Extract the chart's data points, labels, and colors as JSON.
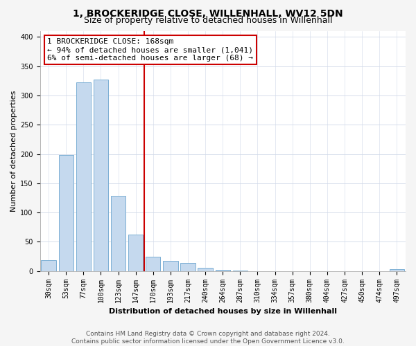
{
  "title": "1, BROCKERIDGE CLOSE, WILLENHALL, WV12 5DN",
  "subtitle": "Size of property relative to detached houses in Willenhall",
  "xlabel": "Distribution of detached houses by size in Willenhall",
  "ylabel": "Number of detached properties",
  "categories": [
    "30sqm",
    "53sqm",
    "77sqm",
    "100sqm",
    "123sqm",
    "147sqm",
    "170sqm",
    "193sqm",
    "217sqm",
    "240sqm",
    "264sqm",
    "287sqm",
    "310sqm",
    "334sqm",
    "357sqm",
    "380sqm",
    "404sqm",
    "427sqm",
    "450sqm",
    "474sqm",
    "497sqm"
  ],
  "values": [
    19,
    198,
    322,
    327,
    129,
    62,
    25,
    17,
    14,
    6,
    2,
    1,
    0,
    0,
    0,
    0,
    0,
    0,
    0,
    0,
    3
  ],
  "bar_color": "#c5d9ee",
  "bar_edge_color": "#7bafd4",
  "vline_x": 5.5,
  "vline_color": "#cc0000",
  "annotation_line1": "1 BROCKERIDGE CLOSE: 168sqm",
  "annotation_line2": "← 94% of detached houses are smaller (1,041)",
  "annotation_line3": "6% of semi-detached houses are larger (68) →",
  "annotation_box_color": "#ffffff",
  "annotation_box_edge_color": "#cc0000",
  "ylim": [
    0,
    410
  ],
  "yticks": [
    0,
    50,
    100,
    150,
    200,
    250,
    300,
    350,
    400
  ],
  "footer_line1": "Contains HM Land Registry data © Crown copyright and database right 2024.",
  "footer_line2": "Contains public sector information licensed under the Open Government Licence v3.0.",
  "bg_color": "#f5f5f5",
  "plot_bg_color": "#ffffff",
  "grid_color": "#d0d8e8",
  "title_fontsize": 10,
  "subtitle_fontsize": 9,
  "xlabel_fontsize": 8,
  "ylabel_fontsize": 8,
  "tick_fontsize": 7,
  "annotation_fontsize": 8,
  "footer_fontsize": 6.5
}
